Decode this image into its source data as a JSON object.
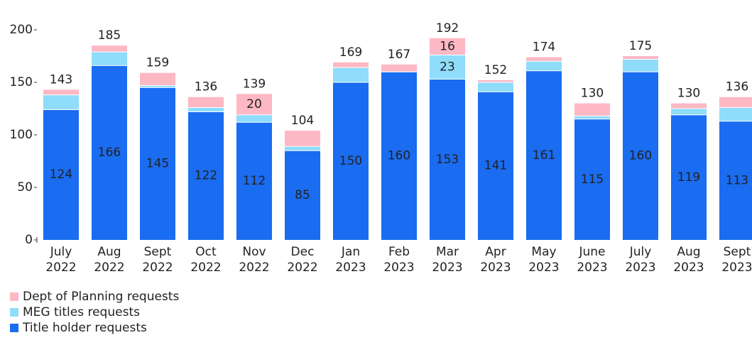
{
  "chart_data": {
    "type": "stacked-bar",
    "categories": [
      [
        "July",
        "2022"
      ],
      [
        "Aug",
        "2022"
      ],
      [
        "Sept",
        "2022"
      ],
      [
        "Oct",
        "2022"
      ],
      [
        "Nov",
        "2022"
      ],
      [
        "Dec",
        "2022"
      ],
      [
        "Jan",
        "2023"
      ],
      [
        "Feb",
        "2023"
      ],
      [
        "Mar",
        "2023"
      ],
      [
        "Apr",
        "2023"
      ],
      [
        "May",
        "2023"
      ],
      [
        "June",
        "2023"
      ],
      [
        "July",
        "2023"
      ],
      [
        "Aug",
        "2023"
      ],
      [
        "Sept",
        "2023"
      ]
    ],
    "series": [
      {
        "name": "Title holder requests",
        "color": "#1a6cf0",
        "values": [
          124,
          166,
          145,
          122,
          112,
          85,
          150,
          160,
          153,
          141,
          161,
          115,
          160,
          119,
          113
        ]
      },
      {
        "name": "MEG titles requests",
        "color": "#8fdcfb",
        "values": [
          14,
          13,
          2,
          4,
          7,
          4,
          14,
          0,
          23,
          9,
          9,
          3,
          12,
          6,
          13
        ]
      },
      {
        "name": "Dept of Planning requests",
        "color": "#fdb8c4",
        "values": [
          5,
          6,
          12,
          10,
          20,
          15,
          5,
          7,
          16,
          2,
          4,
          12,
          3,
          5,
          10
        ]
      }
    ],
    "totals": [
      143,
      185,
      159,
      136,
      139,
      104,
      169,
      167,
      192,
      152,
      174,
      130,
      175,
      130,
      136
    ],
    "ylim": [
      0,
      200
    ],
    "yticks": [
      0,
      50,
      100,
      150,
      200
    ]
  }
}
